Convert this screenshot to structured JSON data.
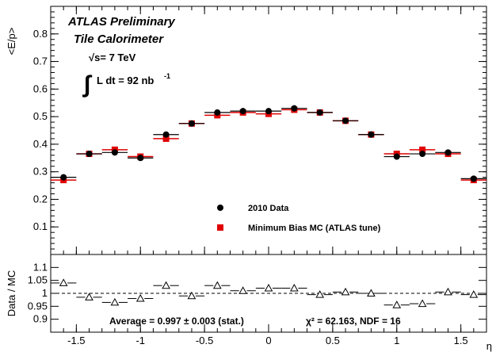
{
  "chart_data": [
    {
      "type": "scatter",
      "panel": "main",
      "ylabel": "<E/p>",
      "ylim": [
        0,
        0.9
      ],
      "xlim": [
        -1.7,
        1.7
      ],
      "yticks": [
        "0.1",
        "0.2",
        "0.3",
        "0.4",
        "0.5",
        "0.6",
        "0.7",
        "0.8"
      ],
      "annotations": {
        "line1": "ATLAS Preliminary",
        "line2": "Tile Calorimeter",
        "energy": "√s= 7 TeV",
        "lumi_integral": "∫",
        "lumi_text": "L dt = 92 nb",
        "lumi_exp": "-1"
      },
      "legend_position": "bottom-center",
      "x": [
        -1.6,
        -1.4,
        -1.2,
        -1.0,
        -0.8,
        -0.6,
        -0.4,
        -0.2,
        0.0,
        0.2,
        0.4,
        0.6,
        0.8,
        1.0,
        1.2,
        1.4,
        1.6
      ],
      "series": [
        {
          "name": "2010 Data",
          "marker": "circle",
          "color": "#000000",
          "values": [
            0.28,
            0.365,
            0.37,
            0.35,
            0.435,
            0.475,
            0.515,
            0.52,
            0.52,
            0.53,
            0.515,
            0.485,
            0.435,
            0.355,
            0.365,
            0.37,
            0.275
          ]
        },
        {
          "name": "Minimum Bias MC (ATLAS tune)",
          "marker": "square",
          "color": "#e00000",
          "values": [
            0.27,
            0.365,
            0.38,
            0.355,
            0.42,
            0.475,
            0.505,
            0.515,
            0.51,
            0.525,
            0.515,
            0.485,
            0.435,
            0.365,
            0.38,
            0.365,
            0.27
          ]
        }
      ]
    },
    {
      "type": "scatter",
      "panel": "ratio",
      "ylabel": "Data / MC",
      "xlabel": "η",
      "ylim": [
        0.85,
        1.15
      ],
      "xlim": [
        -1.7,
        1.7
      ],
      "xticks": [
        "-1.5",
        "-1",
        "-0.5",
        "0",
        "0.5",
        "1",
        "1.5"
      ],
      "yticks": [
        "0.9",
        "0.95",
        "1",
        "1.05",
        "1.1"
      ],
      "reference_line": 1.0,
      "x": [
        -1.6,
        -1.4,
        -1.2,
        -1.0,
        -0.8,
        -0.6,
        -0.4,
        -0.2,
        0.0,
        0.2,
        0.4,
        0.6,
        0.8,
        1.0,
        1.2,
        1.4,
        1.6
      ],
      "series": [
        {
          "marker": "open-triangle",
          "color": "#000000",
          "values": [
            1.04,
            0.985,
            0.965,
            0.98,
            1.03,
            0.99,
            1.03,
            1.01,
            1.02,
            1.02,
            0.995,
            1.005,
            1.0,
            0.955,
            0.96,
            1.005,
            0.995
          ]
        }
      ],
      "summary": {
        "average": "Average = 0.997 ± 0.003 (stat.)",
        "chi2": "χ² = 62.163, NDF = 16"
      }
    }
  ]
}
